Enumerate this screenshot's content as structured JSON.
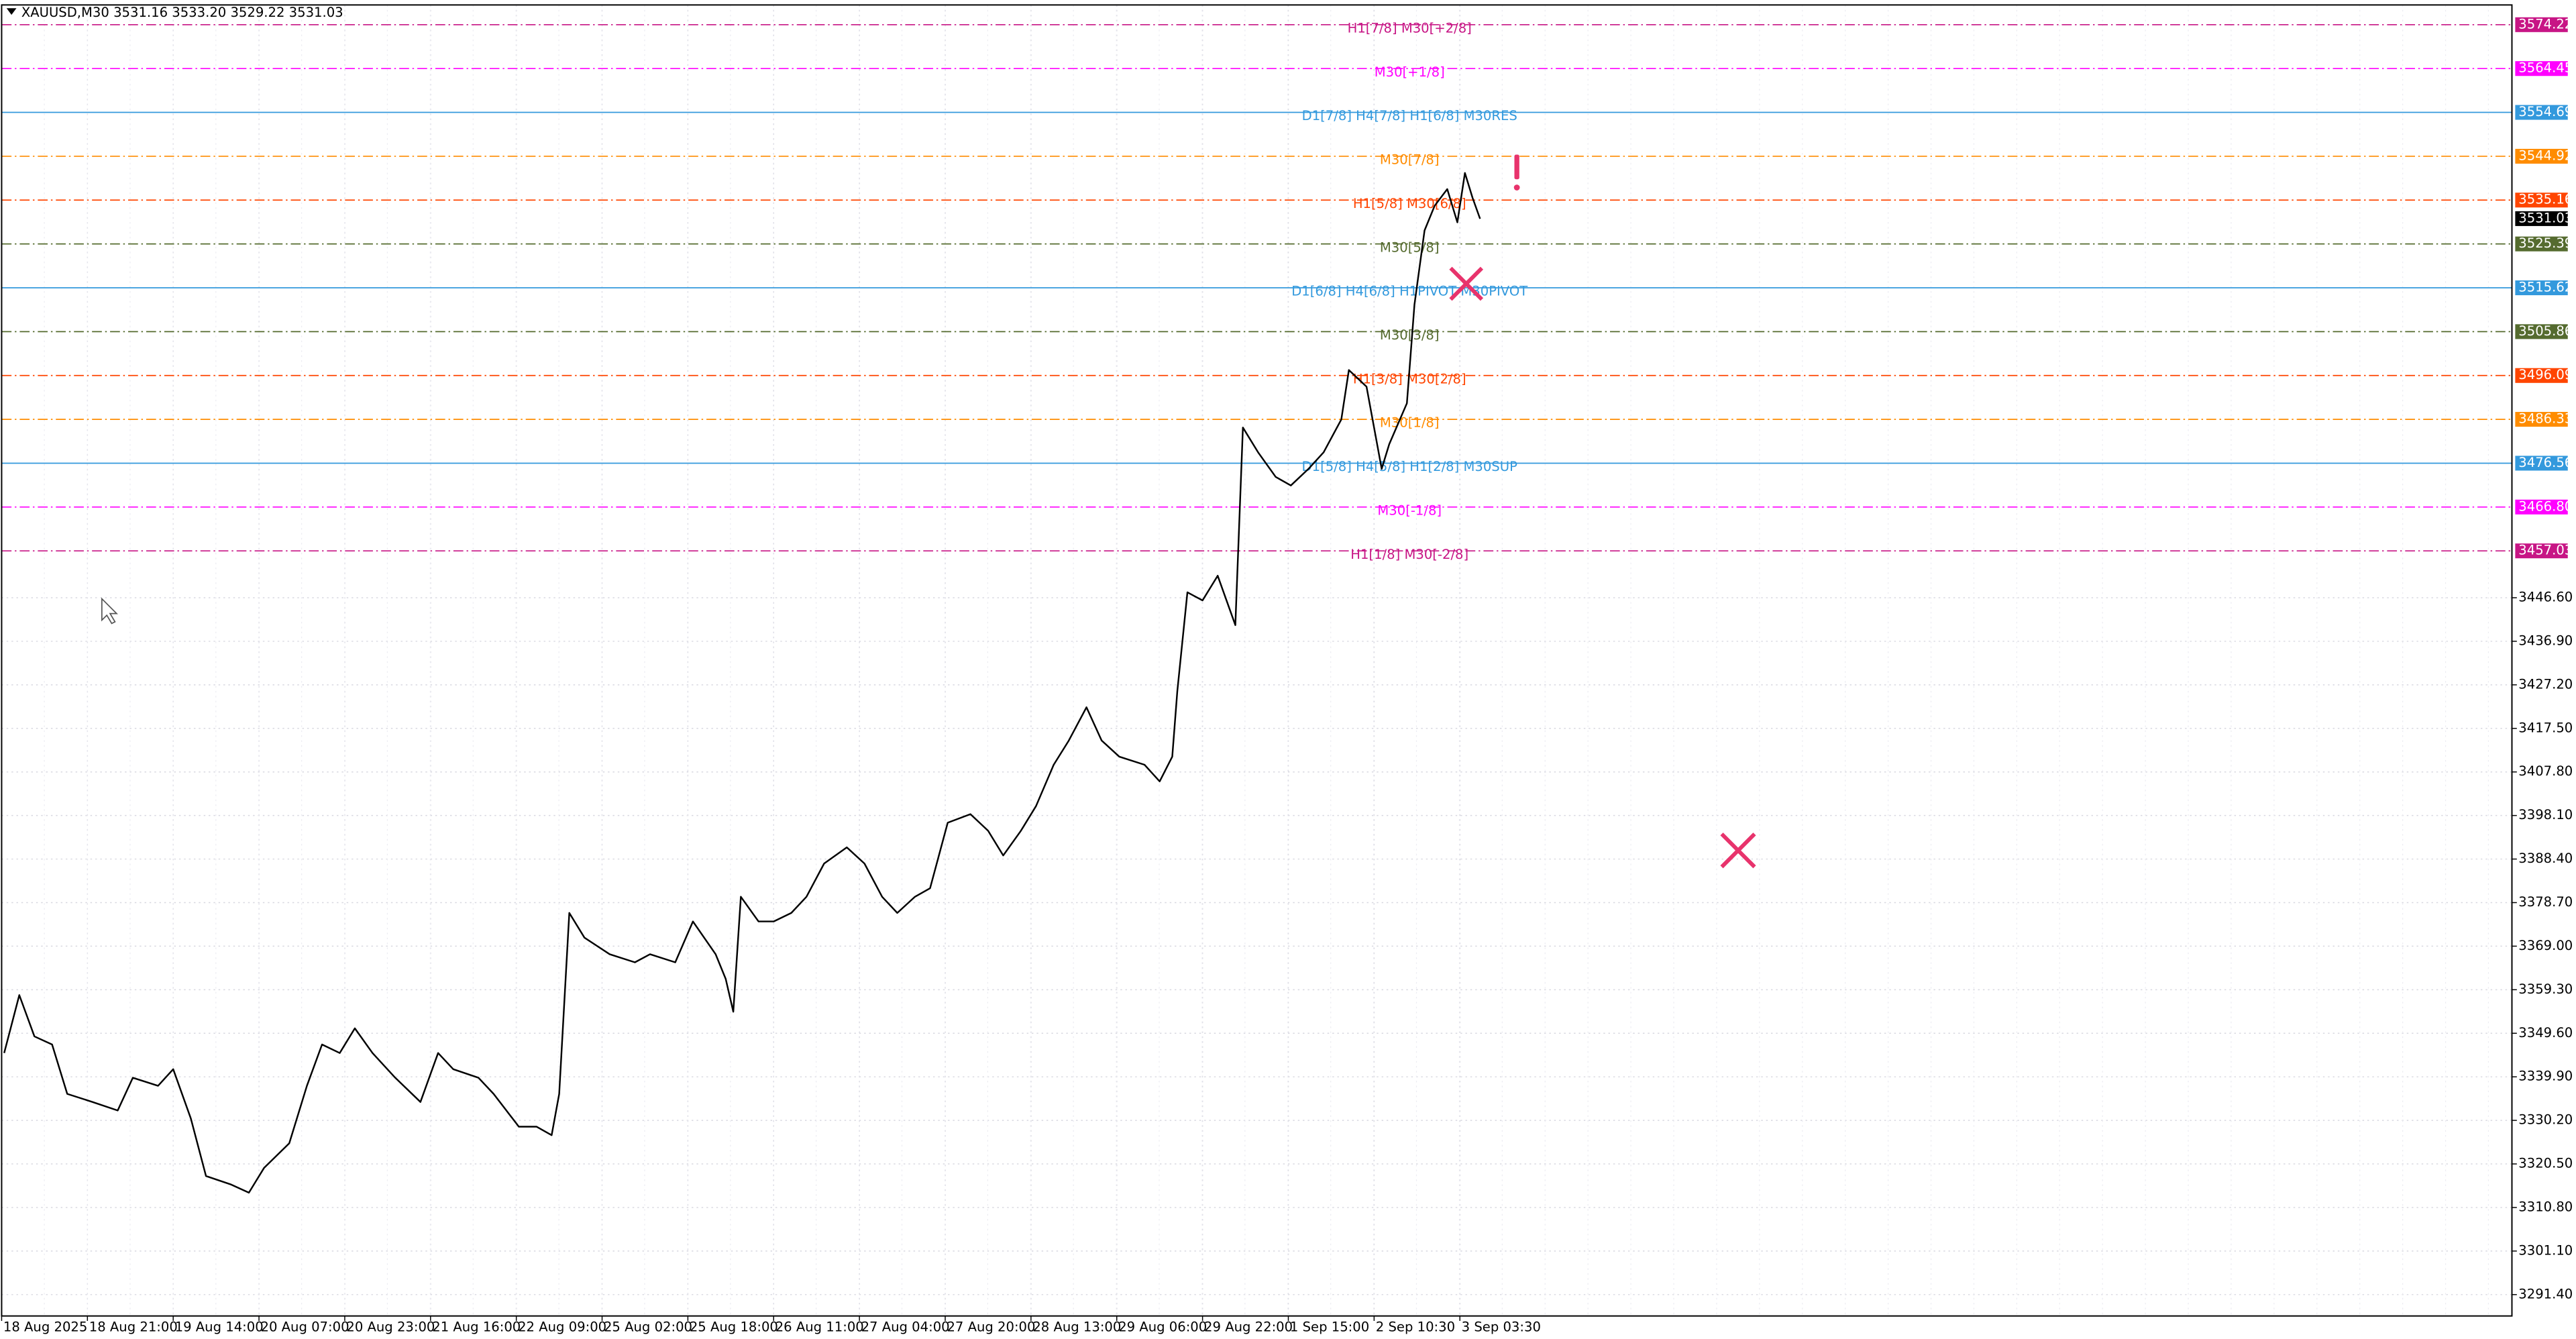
{
  "chart_data": {
    "type": "line",
    "title": "XAUUSD,M30  3531.16 3533.20 3529.22 3531.03",
    "grid": true,
    "x": [
      1,
      7,
      13,
      20,
      26,
      36,
      46,
      52,
      62,
      68,
      75,
      81,
      91,
      98,
      104,
      114,
      121,
      127,
      134,
      140,
      147,
      156,
      166,
      173,
      179,
      189,
      195,
      205,
      212,
      218,
      221,
      225,
      231,
      241,
      251,
      257,
      267,
      274,
      283,
      287,
      290,
      293,
      300,
      306,
      313,
      319,
      326,
      335,
      342,
      349,
      355,
      362,
      368,
      375,
      384,
      391,
      397,
      404,
      410,
      417,
      423,
      430,
      436,
      443,
      453,
      459,
      464,
      466,
      470,
      476,
      482,
      489,
      492,
      498,
      505,
      511,
      518,
      524,
      531,
      534,
      541,
      547,
      550,
      557,
      560,
      564,
      568,
      573,
      577,
      580,
      583,
      586
    ],
    "series": [
      {
        "name": "XAUUSD,M30",
        "color": "#000000",
        "values": [
          3345.2,
          3358.1,
          3348.9,
          3347.1,
          3336.1,
          3334.3,
          3332.4,
          3339.7,
          3337.9,
          3341.6,
          3330.6,
          3317.8,
          3315.9,
          3314.1,
          3319.6,
          3325.1,
          3337.9,
          3347.1,
          3345.2,
          3350.7,
          3345.2,
          3339.7,
          3334.3,
          3345.2,
          3341.6,
          3339.7,
          3336.1,
          3328.8,
          3328.8,
          3326.9,
          3336.1,
          3376.4,
          3370.9,
          3367.2,
          3365.4,
          3367.2,
          3365.4,
          3374.5,
          3367.2,
          3361.7,
          3354.4,
          3380.0,
          3374.5,
          3374.5,
          3376.4,
          3380.0,
          3387.4,
          3391.0,
          3387.4,
          3380.0,
          3376.4,
          3380.0,
          3381.9,
          3396.5,
          3398.4,
          3394.7,
          3389.2,
          3394.7,
          3400.2,
          3409.4,
          3414.8,
          3422.2,
          3414.8,
          3411.2,
          3409.4,
          3405.7,
          3411.2,
          3425.8,
          3447.8,
          3446.0,
          3451.5,
          3440.5,
          3484.5,
          3479.0,
          3473.5,
          3471.6,
          3475.3,
          3479.0,
          3486.3,
          3497.3,
          3493.6,
          3475.3,
          3480.8,
          3489.9,
          3511.9,
          3528.4,
          3533.9,
          3537.6,
          3530.2,
          3541.2,
          3535.7,
          3531.0
        ]
      }
    ],
    "xlim": [
      0,
      995
    ],
    "xticks": [
      {
        "value": 0,
        "label": "18 Aug 2025"
      },
      {
        "value": 34,
        "label": "18 Aug 21:00"
      },
      {
        "value": 68,
        "label": "19 Aug 14:00"
      },
      {
        "value": 102,
        "label": "20 Aug 07:00"
      },
      {
        "value": 136,
        "label": "20 Aug 23:00"
      },
      {
        "value": 170,
        "label": "21 Aug 16:00"
      },
      {
        "value": 204,
        "label": "22 Aug 09:00"
      },
      {
        "value": 238,
        "label": "25 Aug 02:00"
      },
      {
        "value": 272,
        "label": "25 Aug 18:00"
      },
      {
        "value": 306,
        "label": "26 Aug 11:00"
      },
      {
        "value": 340,
        "label": "27 Aug 04:00"
      },
      {
        "value": 374,
        "label": "27 Aug 20:00"
      },
      {
        "value": 408,
        "label": "28 Aug 13:00"
      },
      {
        "value": 442,
        "label": "29 Aug 06:00"
      },
      {
        "value": 476,
        "label": "29 Aug 22:00"
      },
      {
        "value": 510,
        "label": "1 Sep 15:00"
      },
      {
        "value": 544,
        "label": "2 Sep 10:30"
      },
      {
        "value": 578,
        "label": "3 Sep 03:30"
      }
    ],
    "ylim": [
      3286.64,
      3578.62
    ],
    "yticks": [
      {
        "value": 3291.4,
        "label": "3291.40"
      },
      {
        "value": 3301.1,
        "label": "3301.10"
      },
      {
        "value": 3310.8,
        "label": "3310.80"
      },
      {
        "value": 3320.5,
        "label": "3320.50"
      },
      {
        "value": 3330.2,
        "label": "3330.20"
      },
      {
        "value": 3339.9,
        "label": "3339.90"
      },
      {
        "value": 3349.6,
        "label": "3349.60"
      },
      {
        "value": 3359.3,
        "label": "3359.30"
      },
      {
        "value": 3369,
        "label": "3369.00"
      },
      {
        "value": 3378.7,
        "label": "3378.70"
      },
      {
        "value": 3388.4,
        "label": "3388.40"
      },
      {
        "value": 3398.1,
        "label": "3398.10"
      },
      {
        "value": 3407.8,
        "label": "3407.80"
      },
      {
        "value": 3417.5,
        "label": "3417.50"
      },
      {
        "value": 3427.2,
        "label": "3427.20"
      },
      {
        "value": 3436.9,
        "label": "3436.90"
      },
      {
        "value": 3446.6,
        "label": "3446.60"
      }
    ],
    "levels": [
      {
        "name": "H1[7/8] M30[+2/8]",
        "value": 3574.22,
        "color": "#c71585",
        "dash": "dashdot"
      },
      {
        "name": "M30[+1/8]",
        "value": 3564.45,
        "color": "#ff00ff",
        "dash": "dashdot"
      },
      {
        "name": "D1[7/8] H4[7/8] H1[6/8] M30RES",
        "value": 3554.69,
        "color": "#3399dd",
        "dash": "solid"
      },
      {
        "name": "M30[7/8]",
        "value": 3544.92,
        "color": "#ff8c00",
        "dash": "dashdot"
      },
      {
        "name": "H1[5/8] M30[6/8]",
        "value": 3535.16,
        "color": "#ff4500",
        "dash": "dashdot"
      },
      {
        "name": "M30[5/8]",
        "value": 3525.39,
        "color": "#556b2f",
        "dash": "dashdot"
      },
      {
        "name": "D1[6/8] H4[6/8] H1PIVOT M30PIVOT",
        "value": 3515.62,
        "color": "#3399dd",
        "dash": "solid"
      },
      {
        "name": "M30[3/8]",
        "value": 3505.86,
        "color": "#556b2f",
        "dash": "dashdot"
      },
      {
        "name": "H1[3/8] M30[2/8]",
        "value": 3496.09,
        "color": "#ff4500",
        "dash": "dashdot"
      },
      {
        "name": "M30[1/8]",
        "value": 3486.33,
        "color": "#ff8c00",
        "dash": "dashdot"
      },
      {
        "name": "D1[5/8] H4[5/8] H1[2/8] M30SUP",
        "value": 3476.56,
        "color": "#3399dd",
        "dash": "solid"
      },
      {
        "name": "M30[-1/8]",
        "value": 3466.8,
        "value_label": "3466.80",
        "color": "#ff00ff",
        "dash": "dashdot"
      },
      {
        "name": "H1[1/8] M30[-2/8]",
        "value": 3457.03,
        "color": "#c71585",
        "dash": "dashdot"
      }
    ],
    "last_price": 3531.03,
    "last_price_color": "#000000"
  }
}
